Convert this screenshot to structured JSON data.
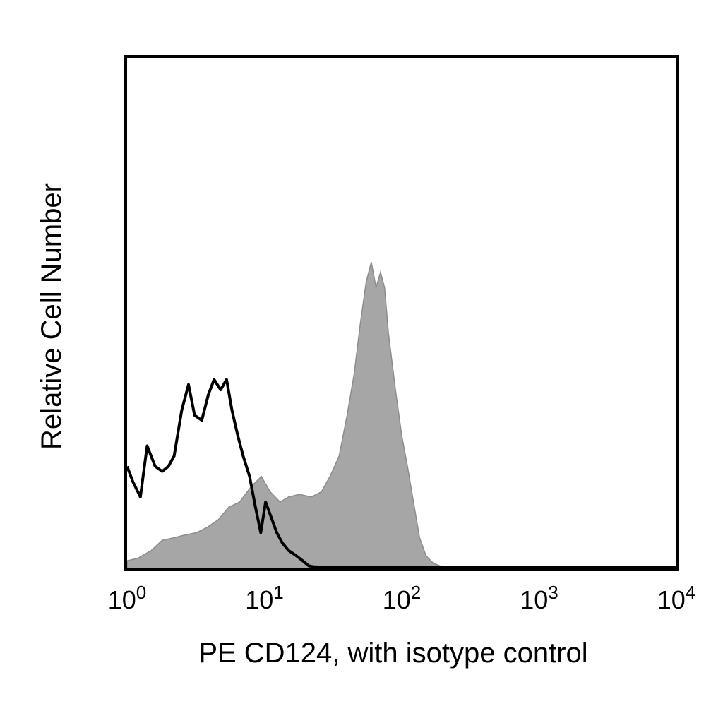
{
  "chart_data": {
    "type": "area",
    "title": "",
    "xlabel": "PE CD124, with isotype control",
    "ylabel": "Relative Cell Number",
    "x_scale": "log",
    "xlim": [
      1,
      10000
    ],
    "ylim": [
      0,
      100
    ],
    "grid": false,
    "legend": "none",
    "x_ticks": [
      {
        "value": 1,
        "base": "10",
        "exp": "0"
      },
      {
        "value": 10,
        "base": "10",
        "exp": "1"
      },
      {
        "value": 100,
        "base": "10",
        "exp": "2"
      },
      {
        "value": 1000,
        "base": "10",
        "exp": "3"
      },
      {
        "value": 10000,
        "base": "10",
        "exp": "4"
      }
    ],
    "series": [
      {
        "style": "filled-gray",
        "color": "#a6a6a6",
        "x": [
          1.0,
          1.2,
          1.5,
          1.8,
          2.2,
          2.6,
          3.2,
          3.8,
          4.6,
          5.5,
          6.6,
          8.0,
          9.5,
          11,
          13,
          15,
          18,
          22,
          26,
          30,
          35,
          40,
          45,
          50,
          55,
          60,
          65,
          70,
          75,
          80,
          90,
          100,
          110,
          120,
          135,
          150,
          170,
          190,
          200,
          300,
          500,
          1000,
          2000,
          5000,
          10000
        ],
        "values": [
          1.5,
          2.0,
          3.5,
          5.5,
          6.0,
          6.5,
          7.0,
          8.0,
          9.5,
          12,
          13,
          16,
          18,
          15,
          13,
          14,
          14.5,
          14,
          15,
          18,
          22,
          30,
          38,
          48,
          56,
          60,
          55,
          58,
          55,
          46,
          35,
          26,
          20,
          14,
          6,
          2.5,
          1,
          0.5,
          0.3,
          0.2,
          0.2,
          0.2,
          0.2,
          0.2,
          0.2
        ]
      },
      {
        "style": "black-line",
        "color": "#000000",
        "x": [
          1.0,
          1.1,
          1.25,
          1.4,
          1.6,
          1.8,
          2.0,
          2.2,
          2.5,
          2.8,
          3.1,
          3.5,
          3.9,
          4.3,
          4.8,
          5.3,
          5.8,
          6.4,
          7.0,
          7.8,
          8.6,
          9.4,
          10.2,
          11.2,
          12.3,
          13.5,
          15,
          17,
          19,
          21,
          23,
          30,
          100,
          10000
        ],
        "values": [
          20,
          17,
          14,
          24,
          20,
          19,
          20,
          22,
          31,
          36,
          30,
          29,
          34,
          37,
          35,
          37,
          31,
          26,
          22,
          18,
          12,
          7,
          13,
          10,
          7,
          5,
          3.5,
          2.5,
          1.5,
          0.5,
          0.3,
          0.2,
          0.2,
          0.2
        ]
      }
    ]
  }
}
